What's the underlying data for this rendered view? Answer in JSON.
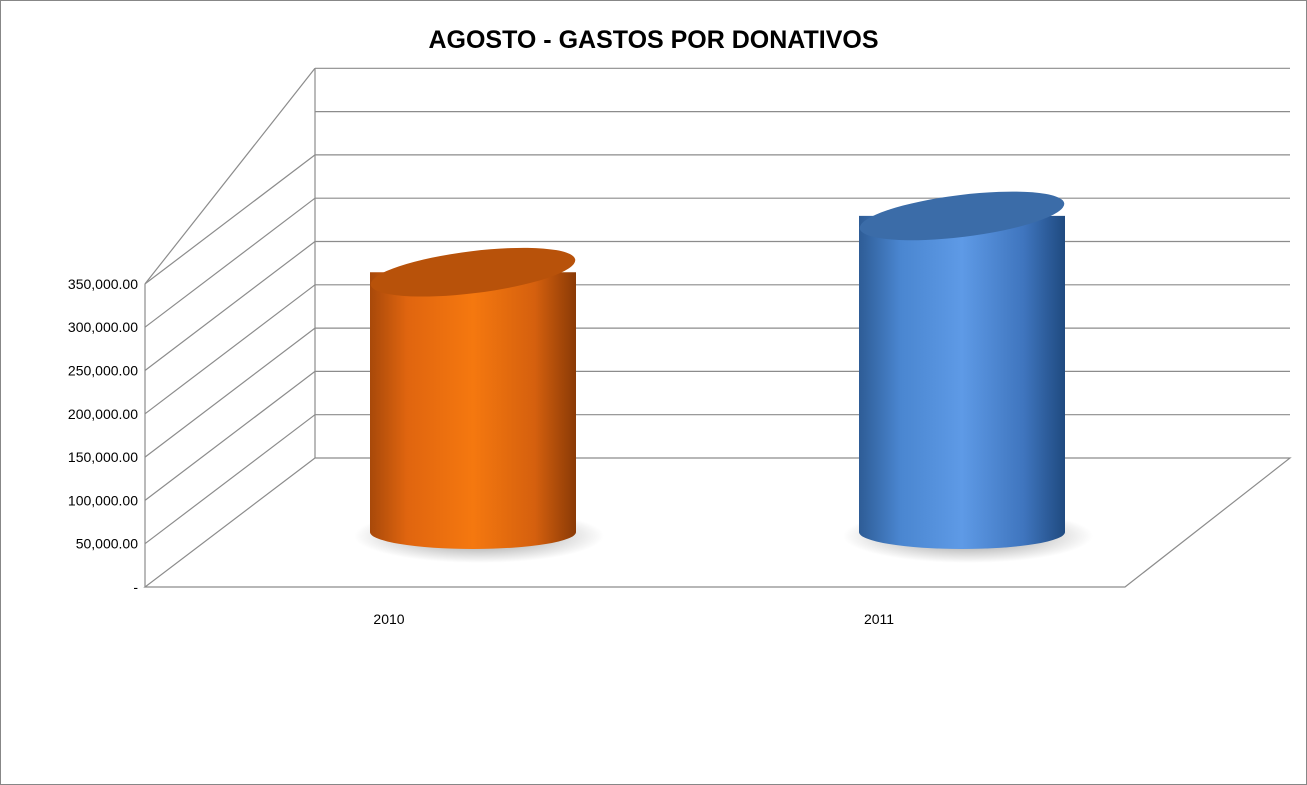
{
  "chart_data": {
    "type": "bar",
    "style": "3d-cylinder",
    "title": "AGOSTO - GASTOS POR DONATIVOS",
    "categories": [
      "2010",
      "2011"
    ],
    "values": [
      300000,
      365000
    ],
    "colors": [
      "#F07010",
      "#4A86D0"
    ],
    "ylim": [
      0,
      350000
    ],
    "yticks": [
      "-",
      "50,000.00",
      "100,000.00",
      "150,000.00",
      "200,000.00",
      "250,000.00",
      "300,000.00",
      "350,000.00"
    ],
    "grid": true,
    "legend": "none"
  }
}
